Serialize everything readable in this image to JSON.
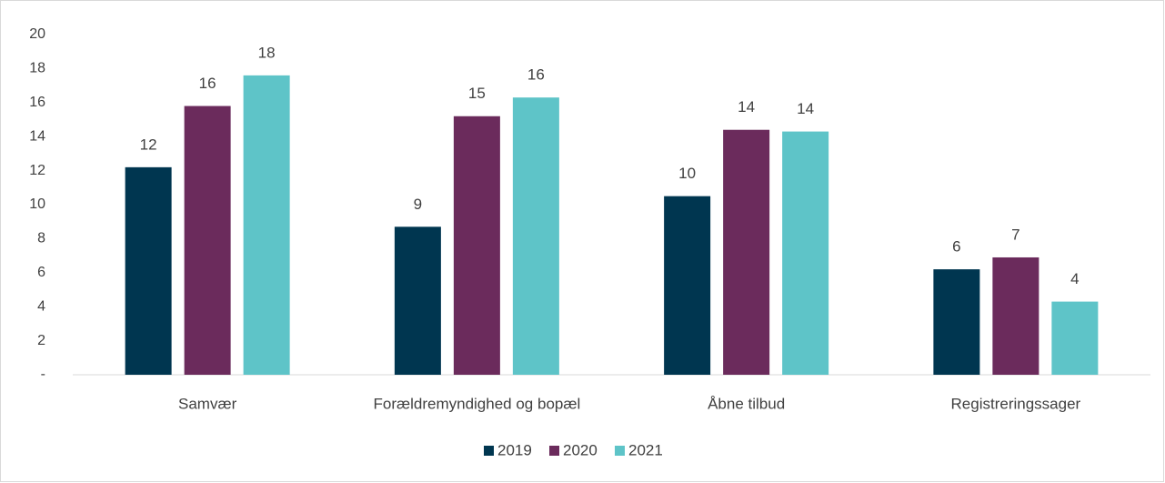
{
  "chart_data": {
    "type": "bar",
    "categories": [
      "Samvær",
      "Forældremyndighed og bopæl",
      "Åbne tilbud",
      "Registreringssager"
    ],
    "series": [
      {
        "name": "2019",
        "color": "#003650",
        "values": [
          12.2,
          8.7,
          10.5,
          6.2
        ],
        "value_labels": [
          "12",
          "9",
          "10",
          "6"
        ]
      },
      {
        "name": "2020",
        "color": "#6b2b5c",
        "values": [
          15.8,
          15.2,
          14.4,
          6.9
        ],
        "value_labels": [
          "16",
          "15",
          "14",
          "7"
        ]
      },
      {
        "name": "2021",
        "color": "#5ec4c8",
        "values": [
          17.6,
          16.3,
          14.3,
          4.3
        ],
        "value_labels": [
          "18",
          "16",
          "14",
          "4"
        ]
      }
    ],
    "ylim": [
      0,
      20
    ],
    "yticks": [
      {
        "value": 0,
        "label": "-"
      },
      2,
      4,
      6,
      8,
      10,
      12,
      14,
      16,
      18,
      20
    ],
    "grid": false,
    "legend": "bottom"
  }
}
